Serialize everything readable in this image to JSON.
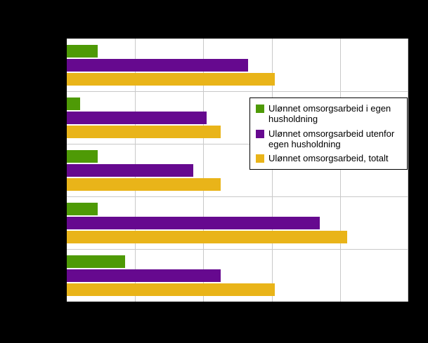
{
  "chart": {
    "background_color": "#000000",
    "plot_background_color": "#ffffff",
    "gridline_color": "#c9c9c9"
  },
  "chart_data": {
    "type": "bar",
    "orientation": "horizontal",
    "categories": [
      "",
      "",
      "",
      "",
      ""
    ],
    "series": [
      {
        "name": "Ulønnet omsorgsarbeid i egen husholdning",
        "color": "#4e9a06",
        "values": [
          0.45,
          0.2,
          0.45,
          0.45,
          0.85
        ]
      },
      {
        "name": "Ulønnet omsorgsarbeid utenfor egen husholdning",
        "color": "#66098f",
        "values": [
          2.65,
          2.05,
          1.85,
          3.7,
          2.25
        ]
      },
      {
        "name": "Ulønnet omsorgsarbeid, totalt",
        "color": "#e9b419",
        "values": [
          3.05,
          2.25,
          2.25,
          4.1,
          3.05
        ]
      }
    ],
    "xlim": [
      0,
      5
    ],
    "grid": true,
    "legend_position": "middle-right"
  },
  "legend": {
    "items": [
      {
        "label": "Ulønnet omsorgsarbeid i egen husholdning",
        "color": "#4e9a06"
      },
      {
        "label": "Ulønnet omsorgsarbeid utenfor egen husholdning",
        "color": "#66098f"
      },
      {
        "label": "Ulønnet omsorgsarbeid, totalt",
        "color": "#e9b419"
      }
    ]
  }
}
